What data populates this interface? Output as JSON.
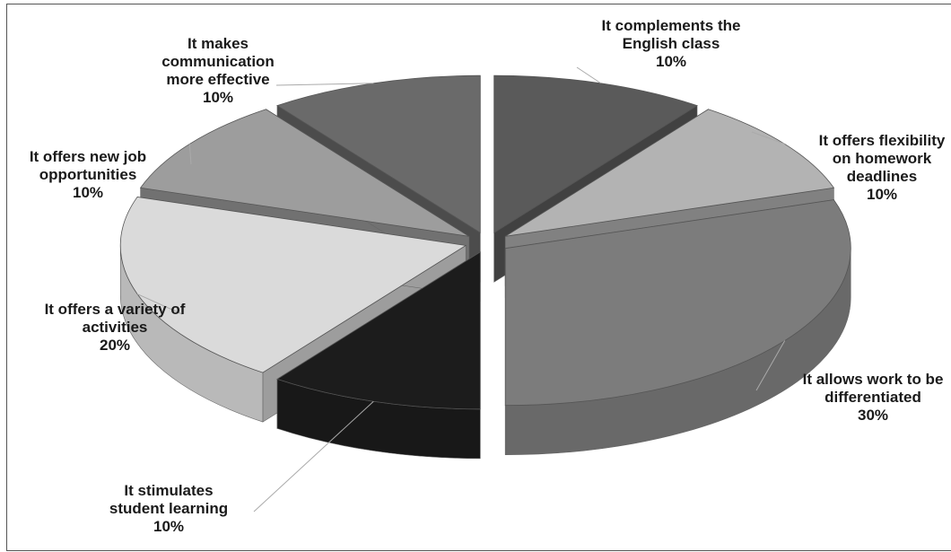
{
  "chart_data": {
    "type": "pie",
    "style": "3d-exploded",
    "slices": [
      {
        "lines": [
          "It complements the",
          "English class"
        ],
        "pct": "10%",
        "value": 10,
        "color": "#5a5a5a"
      },
      {
        "lines": [
          "It offers flexibility",
          "on homework",
          "deadlines"
        ],
        "pct": "10%",
        "value": 10,
        "color": "#b3b3b3"
      },
      {
        "lines": [
          "It allows work to be",
          "differentiated"
        ],
        "pct": "30%",
        "value": 30,
        "color": "#7c7c7c"
      },
      {
        "lines": [
          "It stimulates",
          "student learning"
        ],
        "pct": "10%",
        "value": 10,
        "color": "#1c1c1c"
      },
      {
        "lines": [
          "It offers a variety of",
          "activities"
        ],
        "pct": "20%",
        "value": 20,
        "color": "#dadada"
      },
      {
        "lines": [
          "It offers new job",
          "opportunities"
        ],
        "pct": "10%",
        "value": 10,
        "color": "#9d9d9d"
      },
      {
        "lines": [
          "It makes",
          "communication",
          "more effective"
        ],
        "pct": "10%",
        "value": 10,
        "color": "#6a6a6a"
      }
    ]
  }
}
